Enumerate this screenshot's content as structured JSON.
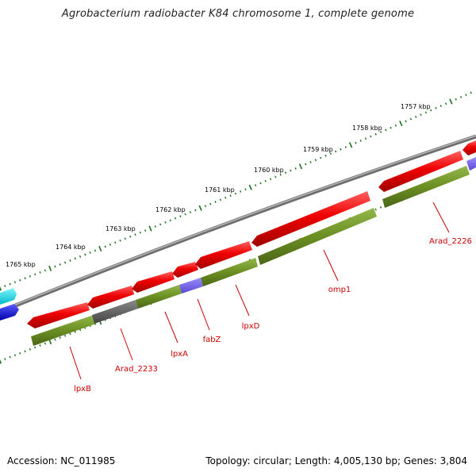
{
  "title": "Agrobacterium radiobacter K84 chromosome 1, complete genome",
  "footer": {
    "accession": "Accession: NC_011985",
    "summary": "Topology: circular; Length: 4,005,130 bp; Genes: 3,804"
  },
  "scale": {
    "ticks": [
      "1765 kbp",
      "1764 kbp",
      "1763 kbp",
      "1762 kbp",
      "1761 kbp",
      "1760 kbp",
      "1759 kbp",
      "1758 kbp",
      "1757 kbp"
    ]
  },
  "genes": [
    "lpxB",
    "Arad_2233",
    "lpxA",
    "fabZ",
    "lpxD",
    "omp1",
    "Arad_2226"
  ],
  "colors": {
    "cds": "#e00000",
    "cog_green": "#6b8e23",
    "cog_grey": "#666666",
    "cog_purple": "#7b68ee",
    "backbone": "#888888",
    "tick": "#1a6e1a",
    "label": "#cc0000",
    "cyan": "#00e5ee",
    "blue": "#0000ee"
  }
}
